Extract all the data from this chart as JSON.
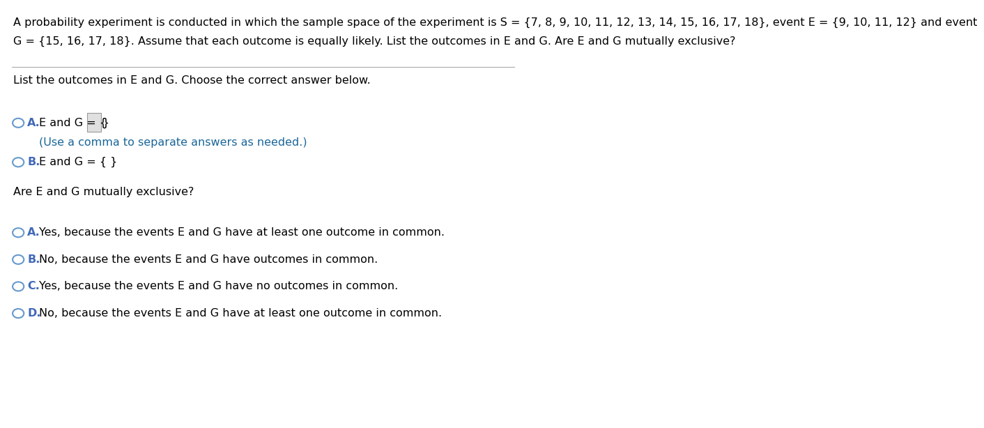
{
  "bg_color": "#ffffff",
  "header_text_line1": "A probability experiment is conducted in which the sample space of the experiment is S = {7, 8, 9, 10, 11, 12, 13, 14, 15, 16, 17, 18}, event E = {9, 10, 11, 12} and event",
  "header_text_line2": "G = {15, 16, 17, 18}. Assume that each outcome is equally likely. List the outcomes in E and G. Are E and G mutually exclusive?",
  "subheader": "List the outcomes in E and G. Choose the correct answer below.",
  "option_A_label": "A.",
  "option_A_text": "E and G = {",
  "option_A_close": "}",
  "option_A_subtext": "(Use a comma to separate answers as needed.)",
  "option_B_label": "B.",
  "option_B_text": "E and G = { }",
  "mutually_header": "Are E and G mutually exclusive?",
  "mut_A_label": "A.",
  "mut_A_text": "Yes, because the events E and G have at least one outcome in common.",
  "mut_B_label": "B.",
  "mut_B_text": "No, because the events E and G have outcomes in common.",
  "mut_C_label": "C.",
  "mut_C_text": "Yes, because the events E and G have no outcomes in common.",
  "mut_D_label": "D.",
  "mut_D_text": "No, because the events E and G have at least one outcome in common.",
  "font_size_body": 11.5,
  "text_color": "#000000",
  "blue_color": "#4169b8",
  "circle_color": "#6699cc",
  "subtext_color": "#1a6699",
  "divider_color": "#aaaaaa",
  "box_fill": "#e0e0e0",
  "box_edge": "#999999"
}
